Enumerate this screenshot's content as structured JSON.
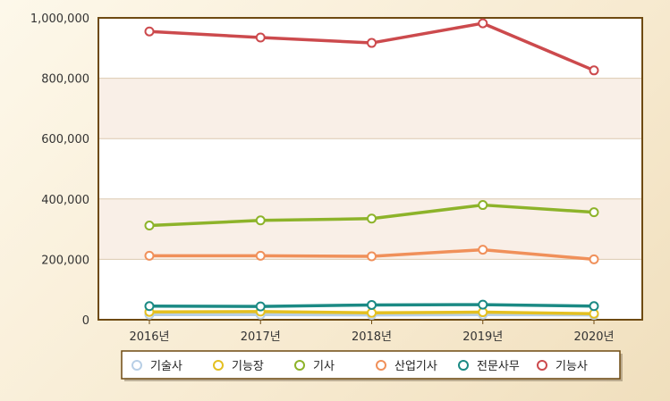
{
  "chart_data": {
    "type": "line",
    "categories": [
      "2016년",
      "2017년",
      "2018년",
      "2019년",
      "2020년"
    ],
    "ylim": [
      0,
      1000000
    ],
    "yticks": [
      0,
      200000,
      400000,
      600000,
      800000,
      1000000
    ],
    "ytick_labels": [
      "0",
      "200,000",
      "400,000",
      "600,000",
      "800,000",
      "1,000,000"
    ],
    "grid": true,
    "legend_position": "bottom",
    "series": [
      {
        "name": "기술사",
        "color": "#b8cfe6",
        "values": [
          17000,
          17000,
          16000,
          17000,
          16000
        ]
      },
      {
        "name": "기능장",
        "color": "#e4c021",
        "values": [
          26000,
          27000,
          23000,
          25000,
          20000
        ]
      },
      {
        "name": "기사",
        "color": "#8db32a",
        "values": [
          312000,
          329000,
          335000,
          380000,
          356000
        ]
      },
      {
        "name": "산업기사",
        "color": "#f0905a",
        "values": [
          212000,
          212000,
          210000,
          232000,
          200000
        ]
      },
      {
        "name": "전문사무",
        "color": "#1b8a84",
        "values": [
          45000,
          44000,
          49000,
          50000,
          45000
        ]
      },
      {
        "name": "기능사",
        "color": "#cc4a4d",
        "values": [
          955000,
          935000,
          917000,
          982000,
          826000
        ]
      }
    ]
  }
}
